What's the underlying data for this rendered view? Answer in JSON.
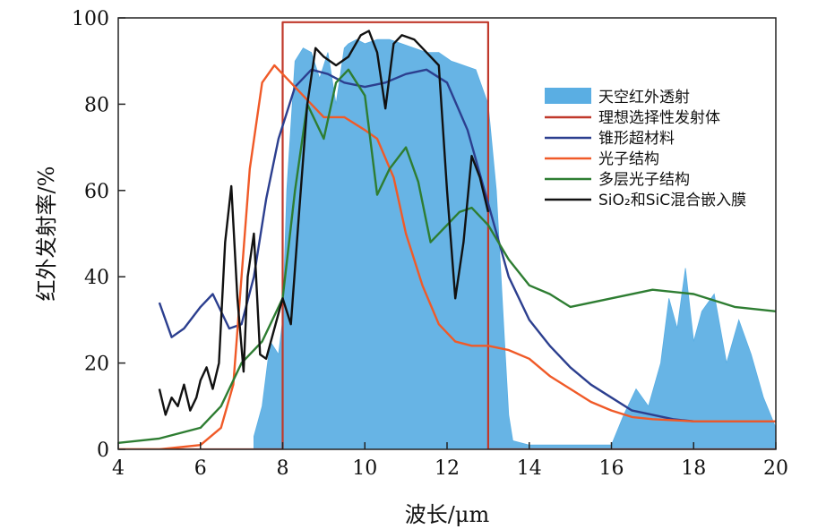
{
  "chart_data": {
    "type": "line",
    "title": "",
    "xlabel": "波长/μm",
    "ylabel": "红外发射率/%",
    "xlim": [
      4,
      20
    ],
    "ylim": [
      0,
      100
    ],
    "x_ticks": [
      4,
      6,
      8,
      10,
      12,
      14,
      16,
      18,
      20
    ],
    "y_ticks": [
      0,
      20,
      40,
      60,
      80,
      100
    ],
    "grid": false,
    "legend_position": "top-right",
    "series": [
      {
        "name": "天空红外透射",
        "style": "filled-area",
        "color": "#5aaee3",
        "x": [
          7.3,
          7.5,
          7.7,
          7.9,
          8.0,
          8.1,
          8.3,
          8.5,
          8.7,
          8.9,
          9.1,
          9.3,
          9.5,
          9.6,
          9.8,
          10.0,
          10.3,
          10.6,
          10.9,
          11.2,
          11.5,
          11.8,
          12.1,
          12.4,
          12.7,
          13.0,
          13.2,
          13.4,
          13.5,
          13.6,
          14.0,
          15.0,
          16.0,
          16.3,
          16.6,
          16.9,
          17.2,
          17.4,
          17.6,
          17.8,
          18.0,
          18.2,
          18.5,
          18.8,
          19.1,
          19.4,
          19.7,
          20.0
        ],
        "y": [
          3,
          10,
          25,
          22,
          30,
          60,
          90,
          93,
          92,
          86,
          92,
          80,
          93,
          94,
          95,
          94,
          95,
          95,
          94,
          93,
          92,
          92,
          90,
          89,
          88,
          80,
          60,
          25,
          8,
          2,
          1,
          1,
          1,
          8,
          14,
          10,
          20,
          35,
          28,
          42,
          25,
          32,
          36,
          20,
          30,
          22,
          12,
          5
        ]
      },
      {
        "name": "理想选择性发射体",
        "color": "#c0392b",
        "x": [
          4,
          8,
          8,
          13,
          13,
          20
        ],
        "y": [
          0,
          0,
          99,
          99,
          0,
          0
        ]
      },
      {
        "name": "锥形超材料",
        "color": "#2c3f8f",
        "x": [
          5.0,
          5.3,
          5.6,
          6.0,
          6.3,
          6.7,
          7.0,
          7.3,
          7.6,
          7.9,
          8.3,
          8.7,
          9.1,
          9.5,
          10.0,
          10.5,
          11.0,
          11.5,
          12.0,
          12.5,
          13.0,
          13.5,
          14.0,
          14.5,
          15.0,
          15.5,
          16.0,
          16.5,
          17.0,
          17.5,
          18.0,
          19.0,
          20.0
        ],
        "y": [
          34,
          26,
          28,
          33,
          36,
          28,
          29,
          40,
          58,
          72,
          84,
          88,
          87,
          85,
          84,
          85,
          87,
          88,
          85,
          74,
          57,
          40,
          30,
          24,
          19,
          15,
          12,
          9,
          8,
          7,
          6.5,
          6.5,
          6.5
        ]
      },
      {
        "name": "光子结构",
        "color": "#f05a28",
        "x": [
          4.0,
          5.0,
          6.0,
          6.5,
          6.8,
          7.0,
          7.2,
          7.5,
          7.8,
          8.0,
          8.5,
          9.0,
          9.5,
          10.0,
          10.3,
          10.7,
          11.0,
          11.4,
          11.8,
          12.2,
          12.6,
          13.0,
          13.5,
          14.0,
          14.5,
          15.0,
          15.5,
          16.0,
          16.5,
          17.0,
          18.0,
          19.0,
          20.0
        ],
        "y": [
          0,
          0,
          1,
          5,
          15,
          40,
          65,
          85,
          89,
          87,
          82,
          77,
          77,
          74,
          72,
          63,
          50,
          38,
          29,
          25,
          24,
          24,
          23,
          21,
          17,
          14,
          11,
          9,
          7.5,
          7,
          6.5,
          6.5,
          6.5
        ]
      },
      {
        "name": "多层光子结构",
        "color": "#2e7d32",
        "x": [
          4.0,
          5.0,
          6.0,
          6.5,
          7.0,
          7.5,
          8.0,
          8.3,
          8.6,
          9.0,
          9.3,
          9.6,
          10.0,
          10.3,
          10.6,
          11.0,
          11.3,
          11.6,
          12.0,
          12.3,
          12.6,
          13.0,
          13.5,
          14.0,
          14.5,
          15.0,
          16.0,
          17.0,
          18.0,
          19.0,
          20.0
        ],
        "y": [
          1.5,
          2.5,
          5,
          10,
          20,
          25,
          35,
          60,
          80,
          72,
          85,
          88,
          82,
          59,
          65,
          70,
          62,
          48,
          52,
          55,
          56,
          52,
          44,
          38,
          36,
          33,
          35,
          37,
          36,
          33,
          32
        ]
      },
      {
        "name": "SiO₂和SiC混合嵌入膜",
        "color": "#111111",
        "x": [
          5.0,
          5.15,
          5.3,
          5.45,
          5.6,
          5.75,
          5.9,
          6.0,
          6.15,
          6.3,
          6.45,
          6.6,
          6.75,
          6.9,
          7.05,
          7.15,
          7.3,
          7.45,
          7.6,
          7.8,
          8.0,
          8.2,
          8.4,
          8.6,
          8.8,
          9.0,
          9.3,
          9.6,
          9.9,
          10.1,
          10.3,
          10.5,
          10.7,
          10.9,
          11.2,
          11.5,
          11.8,
          12.0,
          12.2,
          12.4,
          12.6,
          12.8,
          13.0
        ],
        "y": [
          14,
          8,
          12,
          10,
          15,
          9,
          12,
          16,
          19,
          14,
          20,
          48,
          61,
          35,
          18,
          40,
          50,
          22,
          21,
          28,
          35,
          29,
          55,
          80,
          93,
          91,
          89,
          91,
          96,
          97,
          92,
          79,
          94,
          96,
          95,
          92,
          89,
          60,
          35,
          48,
          68,
          63,
          55
        ]
      }
    ]
  }
}
